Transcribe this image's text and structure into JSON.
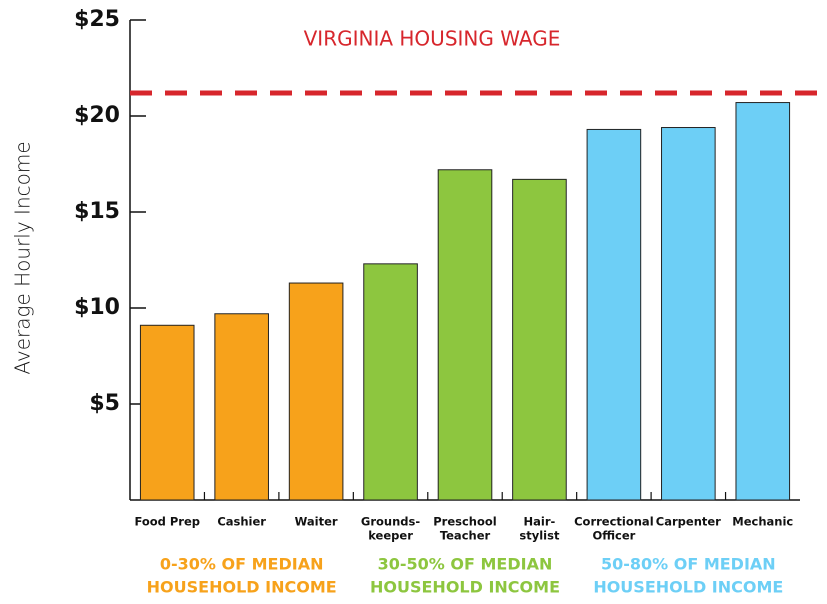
{
  "chart_data": {
    "type": "bar",
    "y_axis_label": "Average Hourly Income",
    "categories": [
      [
        "Food Prep"
      ],
      [
        "Cashier"
      ],
      [
        "Waiter"
      ],
      [
        "Grounds-",
        "keeper"
      ],
      [
        "Preschool",
        "Teacher"
      ],
      [
        "Hair-",
        "stylist"
      ],
      [
        "Correctional",
        "Officer"
      ],
      [
        "Carpenter"
      ],
      [
        "Mechanic"
      ]
    ],
    "values": [
      9.1,
      9.7,
      11.3,
      12.3,
      17.2,
      16.7,
      19.3,
      19.4,
      20.7
    ],
    "colors": [
      "#f7a21b",
      "#f7a21b",
      "#f7a21b",
      "#8dc63f",
      "#8dc63f",
      "#8dc63f",
      "#6dcff6",
      "#6dcff6",
      "#6dcff6"
    ],
    "groups": [
      {
        "label": [
          "0-30% OF MEDIAN",
          "HOUSEHOLD INCOME"
        ],
        "color": "#f7a21b"
      },
      {
        "label": [
          "30-50% OF MEDIAN",
          "HOUSEHOLD INCOME"
        ],
        "color": "#8dc63f"
      },
      {
        "label": [
          "50-80% OF MEDIAN",
          "HOUSEHOLD INCOME"
        ],
        "color": "#6dcff6"
      }
    ],
    "reference_line": {
      "label": "VIRGINIA HOUSING WAGE",
      "value": 21.2,
      "color": "#d7262c"
    },
    "ylim": [
      0,
      25
    ],
    "yticks": [
      {
        "value": 5,
        "label": "$5"
      },
      {
        "value": 10,
        "label": "$10"
      },
      {
        "value": 15,
        "label": "$15"
      },
      {
        "value": 20,
        "label": "$20"
      },
      {
        "value": 25,
        "label": "$25"
      }
    ]
  }
}
